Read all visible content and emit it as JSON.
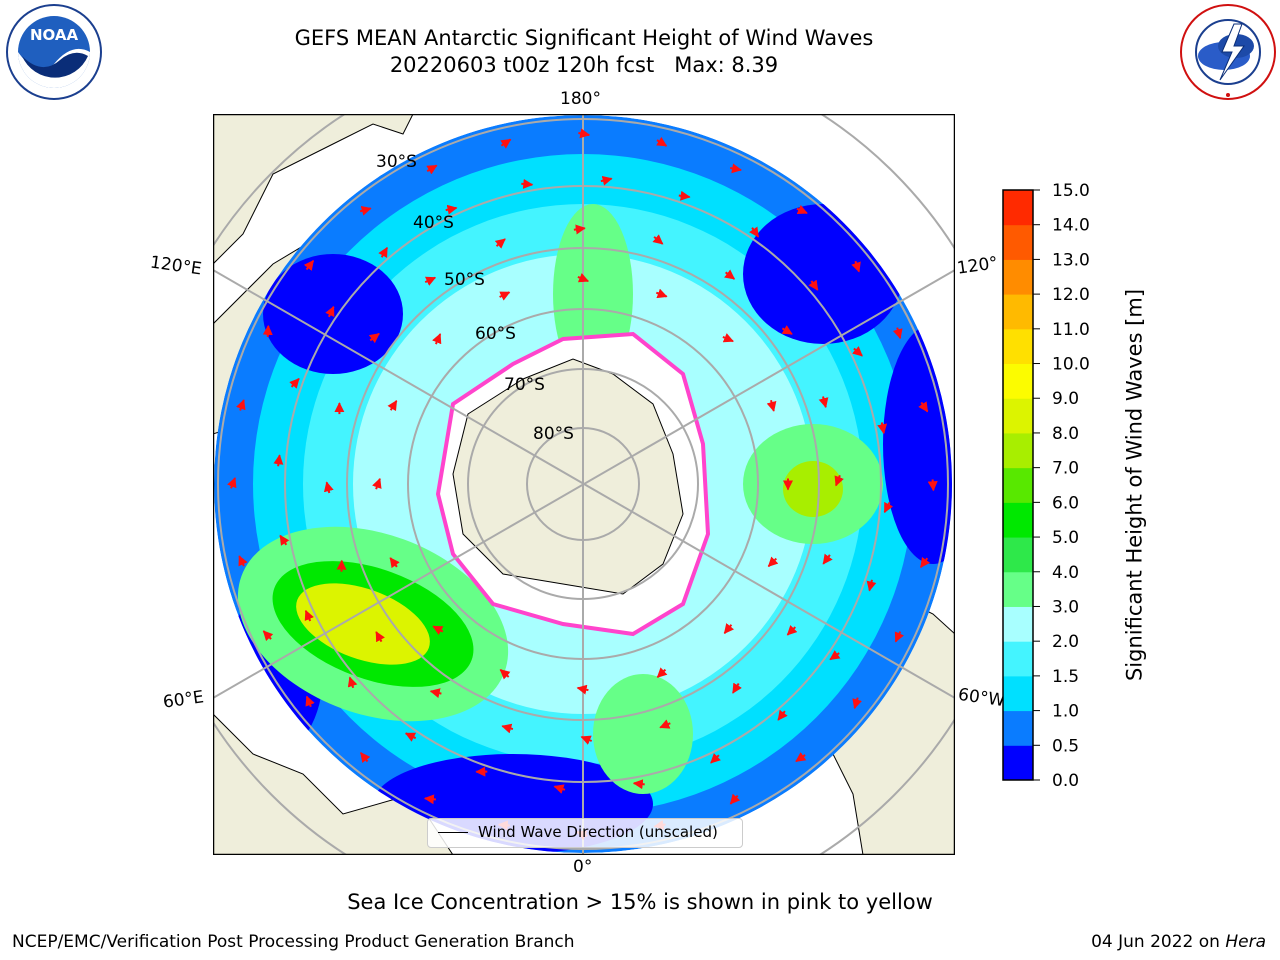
{
  "header": {
    "title_line1": "GEFS MEAN Antarctic Significant Height of Wind Waves",
    "title_line2": "20220603 t00z 120h fcst   Max: 8.39"
  },
  "logos": {
    "left": "NOAA",
    "left_ring_text": "NATIONAL OCEANIC AND ATMOSPHERIC ADMINISTRATION · U.S. DEPARTMENT OF COMMERCE",
    "right_ring_text": "NATIONAL WEATHER SERVICE"
  },
  "map": {
    "projection": "south-polar-stereographic",
    "lon_labels": {
      "top": "180°",
      "bottom": "0°",
      "upper_left": "120°E",
      "upper_right": "120°",
      "lower_left": "60°E",
      "lower_right": "60°W"
    },
    "lat_labels": [
      "30°S",
      "40°S",
      "50°S",
      "60°S",
      "70°S",
      "80°S"
    ],
    "legend": "Wind Wave Direction (unscaled)",
    "colors": {
      "land": "#efeedb",
      "ice_edge": "#ff44cc",
      "arrow": "#ff1010"
    }
  },
  "colorbar": {
    "label": "Significant Height of Wind Waves [m]",
    "ticks": [
      "0.0",
      "0.5",
      "1.0",
      "1.5",
      "2.0",
      "3.0",
      "4.0",
      "5.0",
      "6.0",
      "7.0",
      "8.0",
      "9.0",
      "10.0",
      "11.0",
      "12.0",
      "13.0",
      "14.0",
      "15.0"
    ],
    "colors": [
      "#0000ff",
      "#0a7cff",
      "#00e0ff",
      "#44f4ff",
      "#a8ffff",
      "#66ff88",
      "#2ee84a",
      "#00e800",
      "#58e800",
      "#a8ee00",
      "#dcf400",
      "#fcfc00",
      "#ffe000",
      "#ffba00",
      "#ff8c00",
      "#ff5a00",
      "#ff2a00"
    ]
  },
  "footer": {
    "caption": "Sea Ice Concentration > 15% is shown in pink to yellow",
    "credit": "NCEP/EMC/Verification Post Processing Product Generation Branch",
    "date": "04 Jun 2022 on",
    "host": "Hera"
  }
}
